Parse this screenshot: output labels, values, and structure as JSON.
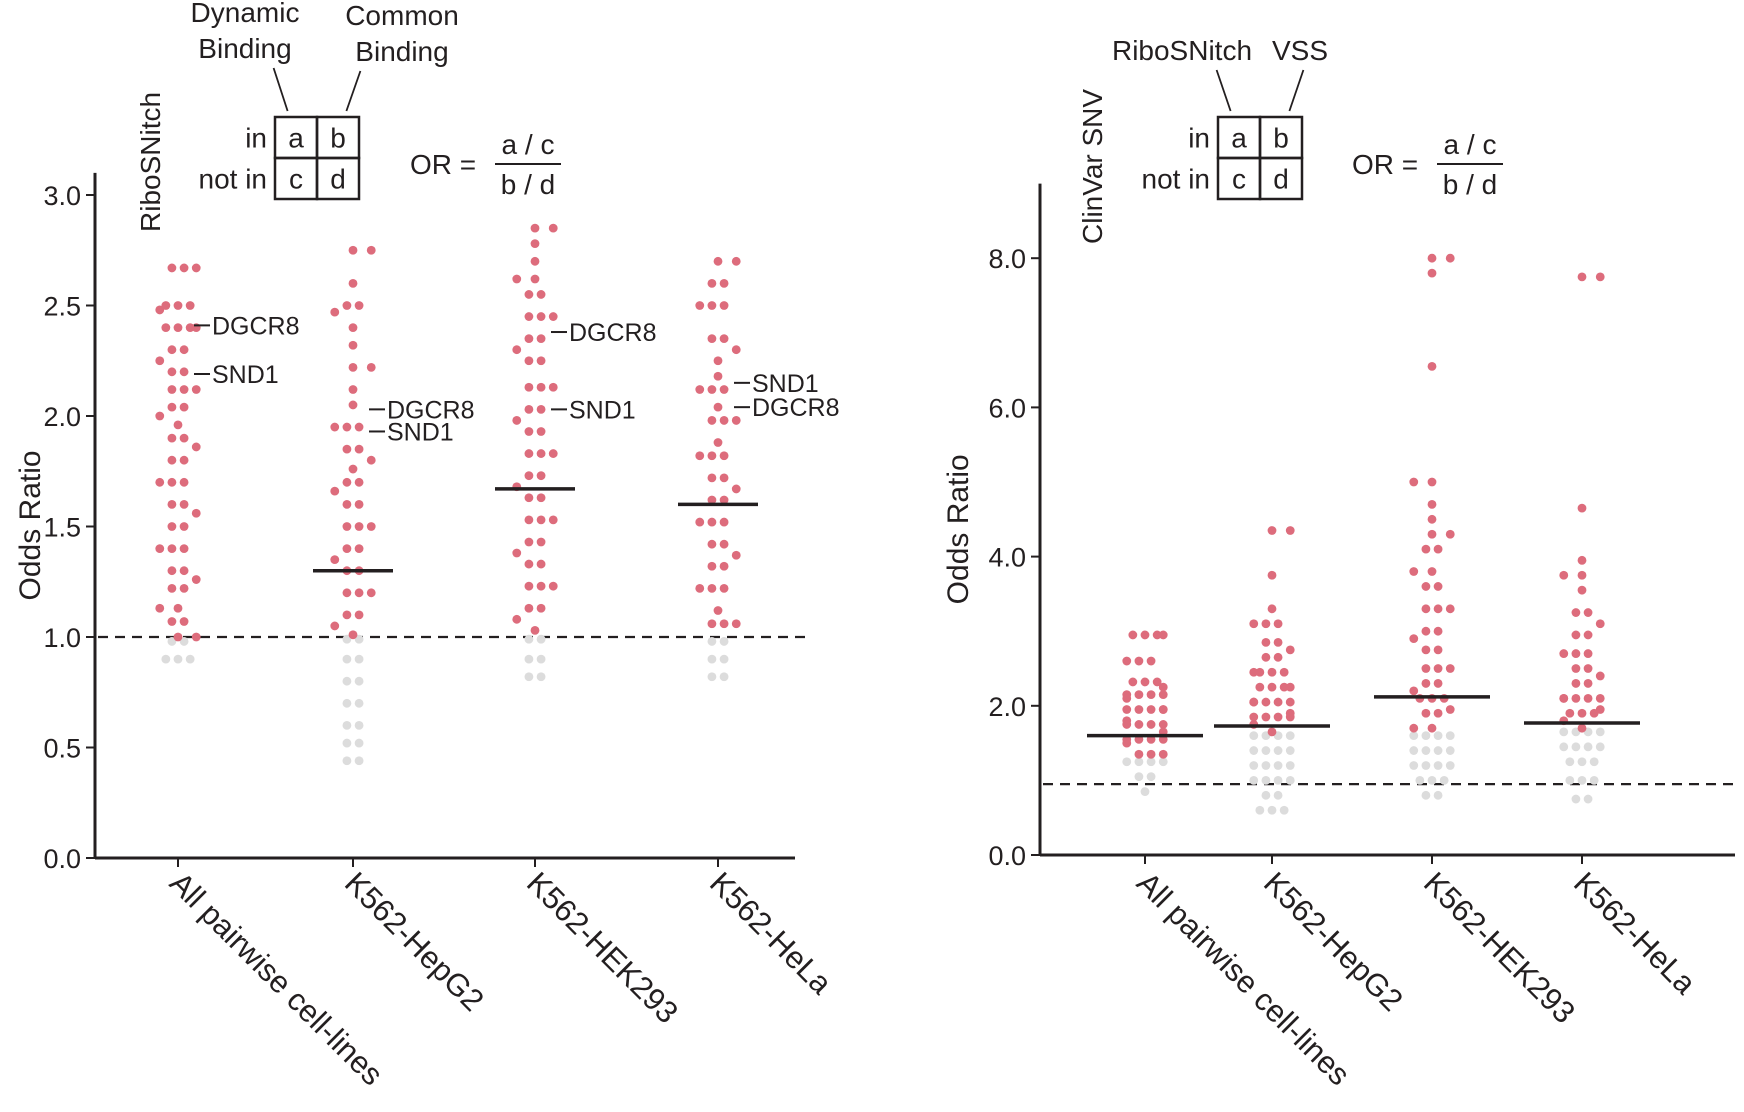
{
  "colors": {
    "significant": "#dd6c7c",
    "nonsignificant": "#dcdcdc",
    "axis": "#231f20",
    "median": "#231f20"
  },
  "chart_data": [
    {
      "type": "scatter",
      "style": "beeswarm",
      "categories": [
        "All pairwise cell-lines",
        "K562-HepG2",
        "K562-HEK293",
        "K562-HeLa"
      ],
      "ylabel": "Odds Ratio",
      "ylim": [
        0,
        3.1
      ],
      "yticks": [
        "0.0",
        "0.5",
        "1.0",
        "1.5",
        "2.0",
        "2.5",
        "3.0"
      ],
      "reference_line": 1.0,
      "medians": [
        null,
        1.3,
        1.67,
        1.6
      ],
      "groups": [
        {
          "significant": [
            2.67,
            2.63,
            2.5,
            2.48,
            2.45,
            2.4,
            2.4,
            2.35,
            2.3,
            2.25,
            2.2,
            2.16,
            2.12,
            2.08,
            2.04,
            2.0,
            1.96,
            1.9,
            1.86,
            1.8,
            1.75,
            1.7,
            1.65,
            1.6,
            1.56,
            1.5,
            1.46,
            1.4,
            1.35,
            1.3,
            1.26,
            1.22,
            1.17,
            1.13,
            1.07,
            1.03,
            1.0
          ],
          "nonsignificant": [
            0.98,
            0.95,
            0.9,
            0.88,
            0.87
          ]
        },
        {
          "significant": [
            2.75,
            2.6,
            2.5,
            2.47,
            2.4,
            2.32,
            2.22,
            2.12,
            2.05,
            1.95,
            1.93,
            1.85,
            1.8,
            1.76,
            1.7,
            1.66,
            1.6,
            1.55,
            1.5,
            1.45,
            1.4,
            1.35,
            1.3,
            1.25,
            1.2,
            1.15,
            1.1,
            1.05,
            1.01
          ],
          "nonsignificant": [
            0.99,
            0.95,
            0.9,
            0.85,
            0.8,
            0.75,
            0.7,
            0.65,
            0.6,
            0.57,
            0.52,
            0.48,
            0.44,
            0.4
          ]
        },
        {
          "significant": [
            2.85,
            2.78,
            2.7,
            2.62,
            2.55,
            2.5,
            2.45,
            2.4,
            2.35,
            2.3,
            2.25,
            2.2,
            2.13,
            2.08,
            2.03,
            1.98,
            1.93,
            1.88,
            1.83,
            1.78,
            1.73,
            1.68,
            1.63,
            1.58,
            1.53,
            1.48,
            1.43,
            1.38,
            1.33,
            1.28,
            1.23,
            1.18,
            1.13,
            1.08,
            1.03
          ],
          "nonsignificant": [
            0.99,
            0.95,
            0.9,
            0.85,
            0.82,
            0.78
          ]
        },
        {
          "significant": [
            2.7,
            2.6,
            2.55,
            2.5,
            2.45,
            2.35,
            2.3,
            2.25,
            2.18,
            2.12,
            2.08,
            2.04,
            1.98,
            1.93,
            1.88,
            1.82,
            1.78,
            1.72,
            1.67,
            1.62,
            1.57,
            1.52,
            1.47,
            1.42,
            1.37,
            1.32,
            1.27,
            1.22,
            1.17,
            1.12,
            1.06,
            1.03
          ],
          "nonsignificant": [
            0.98,
            0.95,
            0.9,
            0.86,
            0.82,
            0.78
          ]
        }
      ],
      "annotations": [
        {
          "group": 0,
          "y": 2.41,
          "label": "DGCR8"
        },
        {
          "group": 0,
          "y": 2.19,
          "label": "SND1"
        },
        {
          "group": 1,
          "y": 2.03,
          "label": "DGCR8"
        },
        {
          "group": 1,
          "y": 1.93,
          "label": "SND1"
        },
        {
          "group": 2,
          "y": 2.38,
          "label": "DGCR8"
        },
        {
          "group": 2,
          "y": 2.03,
          "label": "SND1"
        },
        {
          "group": 3,
          "y": 2.15,
          "label": "SND1"
        },
        {
          "group": 3,
          "y": 2.04,
          "label": "DGCR8"
        }
      ],
      "legend": {
        "row_title": "RiboSNitch",
        "col_titles": [
          "Dynamic\nBinding",
          "Common\nBinding"
        ],
        "row_labels": [
          "in",
          "not in"
        ],
        "cells": [
          "a",
          "b",
          "c",
          "d"
        ],
        "formula_lhs": "OR =",
        "formula_num": "a / c",
        "formula_den": "b / d"
      }
    },
    {
      "type": "scatter",
      "style": "beeswarm",
      "categories": [
        "All pairwise cell-lines",
        "K562-HepG2",
        "K562-HEK293",
        "K562-HeLa"
      ],
      "ylabel": "Odds Ratio",
      "ylim": [
        0,
        9.0
      ],
      "yticks": [
        "0.0",
        "2.0",
        "4.0",
        "6.0",
        "8.0"
      ],
      "reference_line": 0.95,
      "medians": [
        1.6,
        1.73,
        2.12,
        1.77
      ],
      "groups": [
        {
          "significant": [
            2.95,
            2.95,
            2.8,
            2.6,
            2.45,
            2.32,
            2.25,
            2.2,
            2.15,
            2.1,
            2.05,
            2.0,
            1.95,
            1.9,
            1.85,
            1.8,
            1.75,
            1.7,
            1.65,
            1.6,
            1.55,
            1.5,
            1.45,
            1.4,
            1.35,
            1.3
          ],
          "nonsignificant": [
            1.25,
            1.2,
            1.15,
            1.1,
            1.05,
            0.95,
            0.85
          ]
        },
        {
          "significant": [
            4.35,
            3.75,
            3.3,
            3.1,
            2.95,
            2.85,
            2.75,
            2.65,
            2.55,
            2.45,
            2.35,
            2.3,
            2.25,
            2.2,
            2.1,
            2.05,
            2.0,
            1.95,
            1.9,
            1.85,
            1.8,
            1.75,
            1.7,
            1.65
          ],
          "nonsignificant": [
            1.6,
            1.55,
            1.5,
            1.45,
            1.4,
            1.35,
            1.3,
            1.25,
            1.2,
            1.15,
            1.1,
            1.05,
            1.0,
            0.95,
            0.9,
            0.85,
            0.8,
            0.7,
            0.6,
            0.5,
            0.45
          ]
        },
        {
          "significant": [
            8.0,
            7.8,
            6.55,
            5.0,
            4.7,
            4.5,
            4.3,
            4.1,
            3.95,
            3.8,
            3.6,
            3.45,
            3.3,
            3.15,
            3.0,
            2.9,
            2.75,
            2.6,
            2.5,
            2.4,
            2.3,
            2.2,
            2.1,
            2.0,
            1.95,
            1.9,
            1.8,
            1.7
          ],
          "nonsignificant": [
            1.6,
            1.55,
            1.5,
            1.45,
            1.4,
            1.35,
            1.3,
            1.25,
            1.2,
            1.15,
            1.1,
            1.05,
            1.0,
            0.95,
            0.85,
            0.8,
            0.7
          ]
        },
        {
          "significant": [
            7.75,
            4.65,
            3.95,
            3.75,
            3.55,
            3.25,
            3.1,
            2.95,
            2.8,
            2.7,
            2.6,
            2.5,
            2.4,
            2.3,
            2.2,
            2.1,
            2.05,
            2.0,
            1.95,
            1.9,
            1.85,
            1.8,
            1.7
          ],
          "nonsignificant": [
            1.65,
            1.6,
            1.55,
            1.5,
            1.45,
            1.4,
            1.35,
            1.3,
            1.25,
            1.2,
            1.1,
            1.0,
            0.95,
            0.85,
            0.75,
            0.6
          ]
        }
      ],
      "annotations": [],
      "legend": {
        "row_title": "ClinVar SNV",
        "col_titles": [
          "RiboSNitch",
          "VSS"
        ],
        "row_labels": [
          "in",
          "not in"
        ],
        "cells": [
          "a",
          "b",
          "c",
          "d"
        ],
        "formula_lhs": "OR =",
        "formula_num": "a / c",
        "formula_den": "b / d"
      }
    }
  ]
}
